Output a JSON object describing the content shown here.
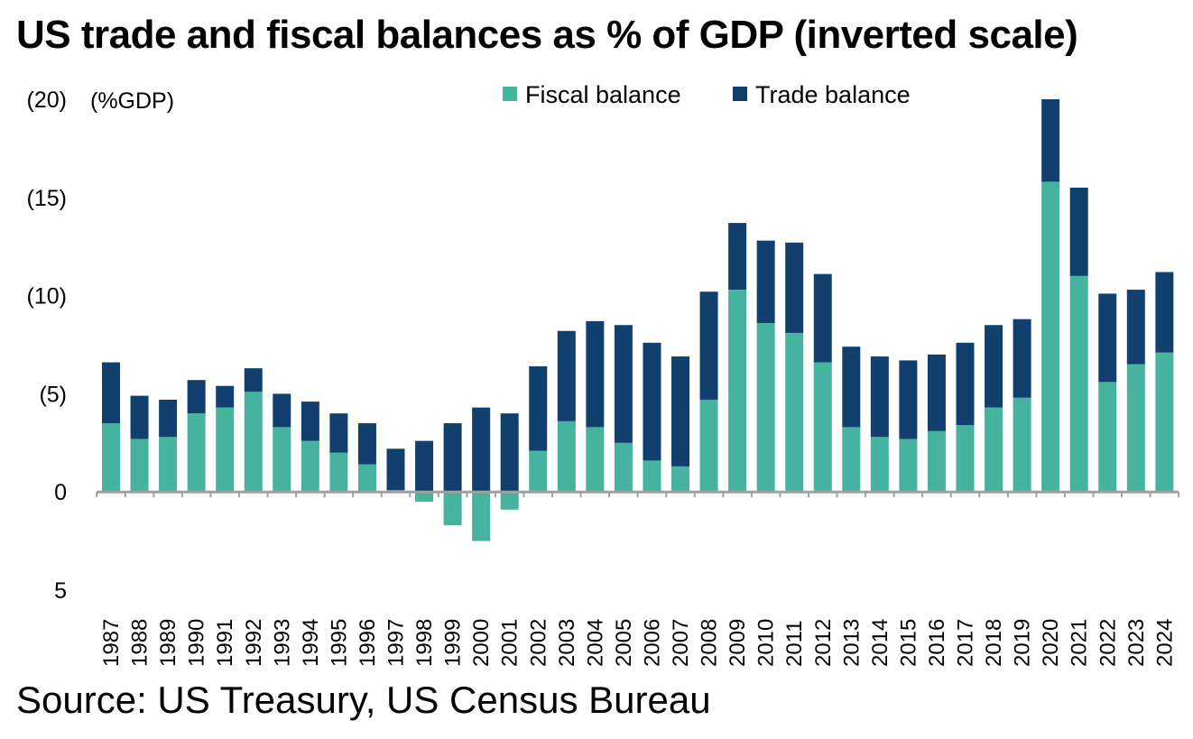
{
  "title": "US trade and fiscal balances as % of GDP (inverted scale)",
  "source": "Source: US Treasury, US Census Bureau",
  "colors": {
    "fiscal": "#45B39D",
    "trade": "#12406E",
    "axis": "#a0a0a0"
  },
  "chart_data": {
    "type": "bar",
    "stacked": true,
    "inverted_y": true,
    "title": "US trade and fiscal balances as % of GDP (inverted scale)",
    "ylabel": "(%GDP)",
    "ylim": [
      5,
      -20
    ],
    "y_ticks": [
      -20,
      -15,
      -10,
      -5,
      0,
      5
    ],
    "y_tick_labels": [
      "(20)",
      "(15)",
      "(10)",
      "(5)",
      "0",
      "5"
    ],
    "legend": [
      "Fiscal balance",
      "Trade balance"
    ],
    "legend_position": "top-center",
    "categories": [
      "1987",
      "1988",
      "1989",
      "1990",
      "1991",
      "1992",
      "1993",
      "1994",
      "1995",
      "1996",
      "1997",
      "1998",
      "1999",
      "2000",
      "2001",
      "2002",
      "2003",
      "2004",
      "2005",
      "2006",
      "2007",
      "2008",
      "2009",
      "2010",
      "2011",
      "2012",
      "2013",
      "2014",
      "2015",
      "2016",
      "2017",
      "2018",
      "2019",
      "2020",
      "2021",
      "2022",
      "2023",
      "2024"
    ],
    "series": [
      {
        "name": "Fiscal balance",
        "values": [
          -3.5,
          -2.7,
          -2.8,
          -4.0,
          -4.3,
          -5.1,
          -3.3,
          -2.6,
          -2.0,
          -1.4,
          -0.1,
          0.5,
          1.7,
          2.5,
          0.9,
          -2.1,
          -3.6,
          -3.3,
          -2.5,
          -1.6,
          -1.3,
          -4.7,
          -10.3,
          -8.6,
          -8.1,
          -6.6,
          -3.3,
          -2.8,
          -2.7,
          -3.1,
          -3.4,
          -4.3,
          -4.8,
          -15.8,
          -11.0,
          -5.6,
          -6.5,
          -7.1
        ]
      },
      {
        "name": "Trade balance",
        "values": [
          -3.1,
          -2.2,
          -1.9,
          -1.7,
          -1.1,
          -1.2,
          -1.7,
          -2.0,
          -2.0,
          -2.1,
          -2.1,
          -2.6,
          -3.5,
          -4.3,
          -4.0,
          -4.3,
          -4.6,
          -5.4,
          -6.0,
          -6.0,
          -5.6,
          -5.5,
          -3.4,
          -4.2,
          -4.6,
          -4.5,
          -4.1,
          -4.1,
          -4.0,
          -3.9,
          -4.2,
          -4.2,
          -4.0,
          -4.2,
          -4.5,
          -4.5,
          -3.8,
          -4.1
        ]
      }
    ]
  }
}
